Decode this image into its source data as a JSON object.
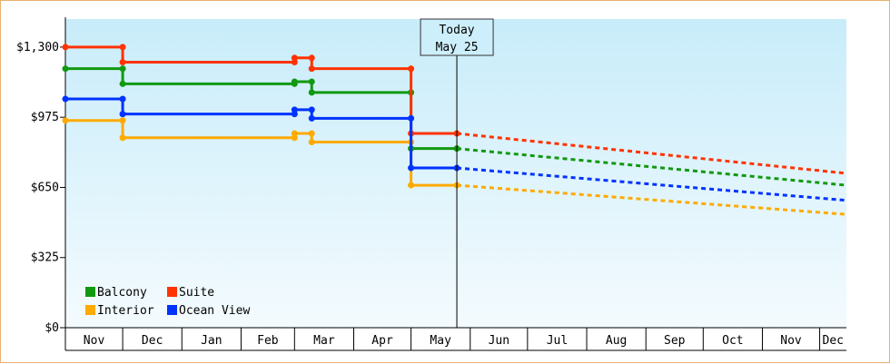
{
  "chart_data": {
    "type": "line",
    "title": "",
    "xlabel": "",
    "ylabel": "",
    "ylim": [
      0,
      1430
    ],
    "y_ticks": [
      0,
      325,
      650,
      975,
      1300
    ],
    "y_tick_labels": [
      "$0",
      "$325",
      "$650",
      "$975",
      "$1,300"
    ],
    "x_month_labels": [
      "Nov",
      "Dec",
      "Jan",
      "Feb",
      "Mar",
      "Apr",
      "May",
      "Jun",
      "Jul",
      "Aug",
      "Sep",
      "Oct",
      "Nov",
      "Dec"
    ],
    "xlim": [
      "2020-11-01",
      "2021-12-15"
    ],
    "today_marker": {
      "line1": "Today",
      "line2": "May 25",
      "date": "2021-05-25"
    },
    "grid": false,
    "legend_position": "bottom-left",
    "series": [
      {
        "name": "Balcony",
        "color": "#119911",
        "points": [
          [
            "2020-11-01",
            1200
          ],
          [
            "2020-12-01",
            1200
          ],
          [
            "2020-12-01",
            1130
          ],
          [
            "2021-03-01",
            1130
          ],
          [
            "2021-03-01",
            1140
          ],
          [
            "2021-03-10",
            1140
          ],
          [
            "2021-03-10",
            1090
          ],
          [
            "2021-05-01",
            1090
          ],
          [
            "2021-05-01",
            830
          ],
          [
            "2021-05-25",
            830
          ]
        ],
        "forecast": [
          [
            "2021-05-25",
            830
          ],
          [
            "2021-12-15",
            660
          ]
        ]
      },
      {
        "name": "Suite",
        "color": "#ff3300",
        "points": [
          [
            "2020-11-01",
            1300
          ],
          [
            "2020-12-01",
            1300
          ],
          [
            "2020-12-01",
            1230
          ],
          [
            "2021-03-01",
            1230
          ],
          [
            "2021-03-01",
            1250
          ],
          [
            "2021-03-10",
            1250
          ],
          [
            "2021-03-10",
            1200
          ],
          [
            "2021-05-01",
            1200
          ],
          [
            "2021-05-01",
            900
          ],
          [
            "2021-05-25",
            900
          ]
        ],
        "forecast": [
          [
            "2021-05-25",
            900
          ],
          [
            "2021-12-15",
            715
          ]
        ]
      },
      {
        "name": "Interior",
        "color": "#ffaa00",
        "points": [
          [
            "2020-11-01",
            960
          ],
          [
            "2020-12-01",
            960
          ],
          [
            "2020-12-01",
            880
          ],
          [
            "2021-03-01",
            880
          ],
          [
            "2021-03-01",
            900
          ],
          [
            "2021-03-10",
            900
          ],
          [
            "2021-03-10",
            860
          ],
          [
            "2021-05-01",
            860
          ],
          [
            "2021-05-01",
            660
          ],
          [
            "2021-05-25",
            660
          ]
        ],
        "forecast": [
          [
            "2021-05-25",
            660
          ],
          [
            "2021-12-15",
            525
          ]
        ]
      },
      {
        "name": "Ocean View",
        "color": "#0033ff",
        "points": [
          [
            "2020-11-01",
            1060
          ],
          [
            "2020-12-01",
            1060
          ],
          [
            "2020-12-01",
            990
          ],
          [
            "2021-03-01",
            990
          ],
          [
            "2021-03-01",
            1010
          ],
          [
            "2021-03-10",
            1010
          ],
          [
            "2021-03-10",
            970
          ],
          [
            "2021-05-01",
            970
          ],
          [
            "2021-05-01",
            740
          ],
          [
            "2021-05-25",
            740
          ]
        ],
        "forecast": [
          [
            "2021-05-25",
            740
          ],
          [
            "2021-12-15",
            590
          ]
        ]
      }
    ]
  }
}
